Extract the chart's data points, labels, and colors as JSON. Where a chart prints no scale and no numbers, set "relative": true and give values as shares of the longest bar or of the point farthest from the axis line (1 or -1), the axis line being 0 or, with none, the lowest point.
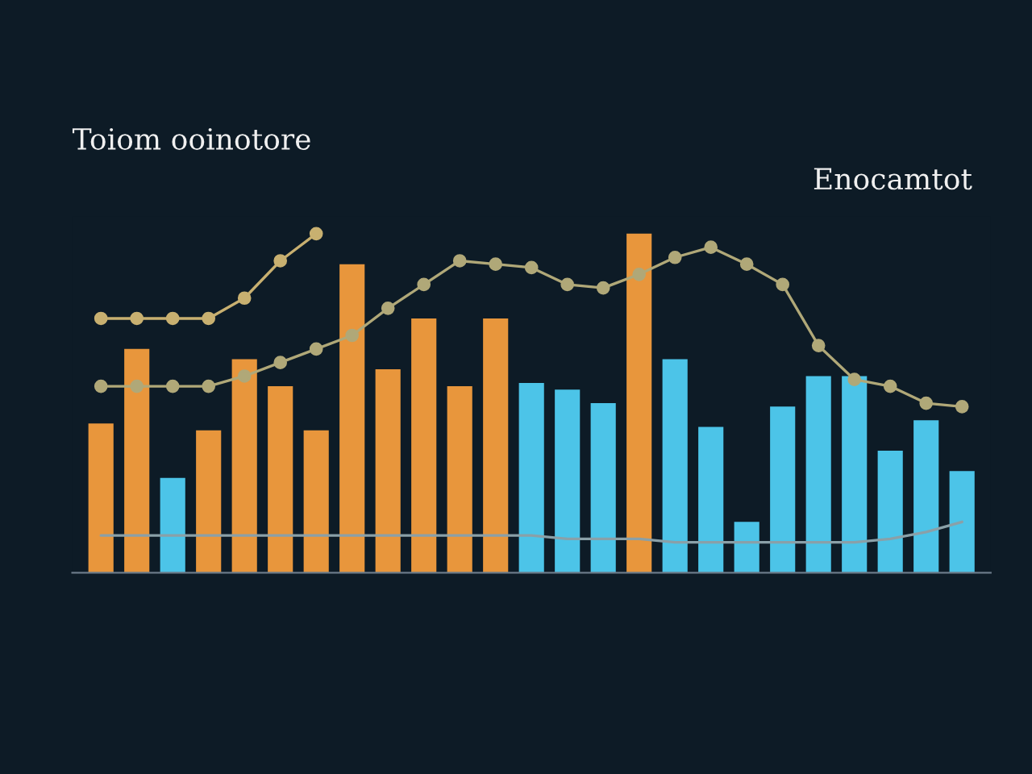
{
  "chart_data": [
    {
      "type": "bar",
      "title": "Toiom ooinotore",
      "annotations": [
        "Enocamtot"
      ],
      "relative": true,
      "grid": false,
      "categories": [
        null,
        null,
        null,
        null,
        null,
        null,
        null,
        null,
        null,
        null,
        null,
        null,
        null,
        null,
        null,
        null,
        null,
        null,
        null,
        null,
        null,
        null,
        null,
        null,
        null
      ],
      "series": [
        {
          "values": [
            0.44,
            0.66,
            0.28,
            0.42,
            0.63,
            0.55,
            0.42,
            0.91,
            0.6,
            0.75,
            0.55,
            0.75,
            0.56,
            0.54,
            0.5,
            1.0,
            0.63,
            0.43,
            0.15,
            0.49,
            0.58,
            0.58,
            0.36,
            0.45,
            0.3
          ],
          "colors": [
            "#e8963c",
            "#e8963c",
            "#4cc4e8",
            "#e8963c",
            "#e8963c",
            "#e8963c",
            "#e8963c",
            "#e8963c",
            "#e8963c",
            "#e8963c",
            "#e8963c",
            "#e8963c",
            "#4cc4e8",
            "#4cc4e8",
            "#4cc4e8",
            "#e8963c",
            "#4cc4e8",
            "#4cc4e8",
            "#4cc4e8",
            "#4cc4e8",
            "#4cc4e8",
            "#4cc4e8",
            "#4cc4e8",
            "#4cc4e8",
            "#4cc4e8"
          ]
        }
      ]
    },
    {
      "type": "line",
      "relative": true,
      "grid": false,
      "categories": [
        null,
        null,
        null,
        null,
        null,
        null,
        null,
        null,
        null,
        null,
        null,
        null,
        null,
        null,
        null,
        null,
        null,
        null,
        null,
        null,
        null,
        null,
        null,
        null,
        null
      ],
      "series": [
        {
          "color": "#c8b070",
          "marker": "circle",
          "values": [
            0.75,
            0.75,
            0.75,
            0.75,
            0.81,
            0.92,
            1.0,
            null,
            null,
            null,
            null,
            null,
            null,
            null,
            null,
            null,
            null,
            null,
            null,
            null,
            null,
            null,
            null,
            null,
            null
          ]
        },
        {
          "color": "#b0a878",
          "marker": "circle",
          "values": [
            0.55,
            0.55,
            0.55,
            0.55,
            0.58,
            0.62,
            0.66,
            0.7,
            0.78,
            0.85,
            0.92,
            0.91,
            0.9,
            0.85,
            0.84,
            0.88,
            0.93,
            0.96,
            0.91,
            0.85,
            0.67,
            0.57,
            0.55,
            0.5,
            0.49
          ]
        },
        {
          "color": "#8aa0a8",
          "marker": "none",
          "values": [
            0.11,
            0.11,
            0.11,
            0.11,
            0.11,
            0.11,
            0.11,
            0.11,
            0.11,
            0.11,
            0.11,
            0.11,
            0.11,
            0.1,
            0.1,
            0.1,
            0.09,
            0.09,
            0.09,
            0.09,
            0.09,
            0.09,
            0.1,
            0.12,
            0.15
          ]
        }
      ]
    }
  ]
}
